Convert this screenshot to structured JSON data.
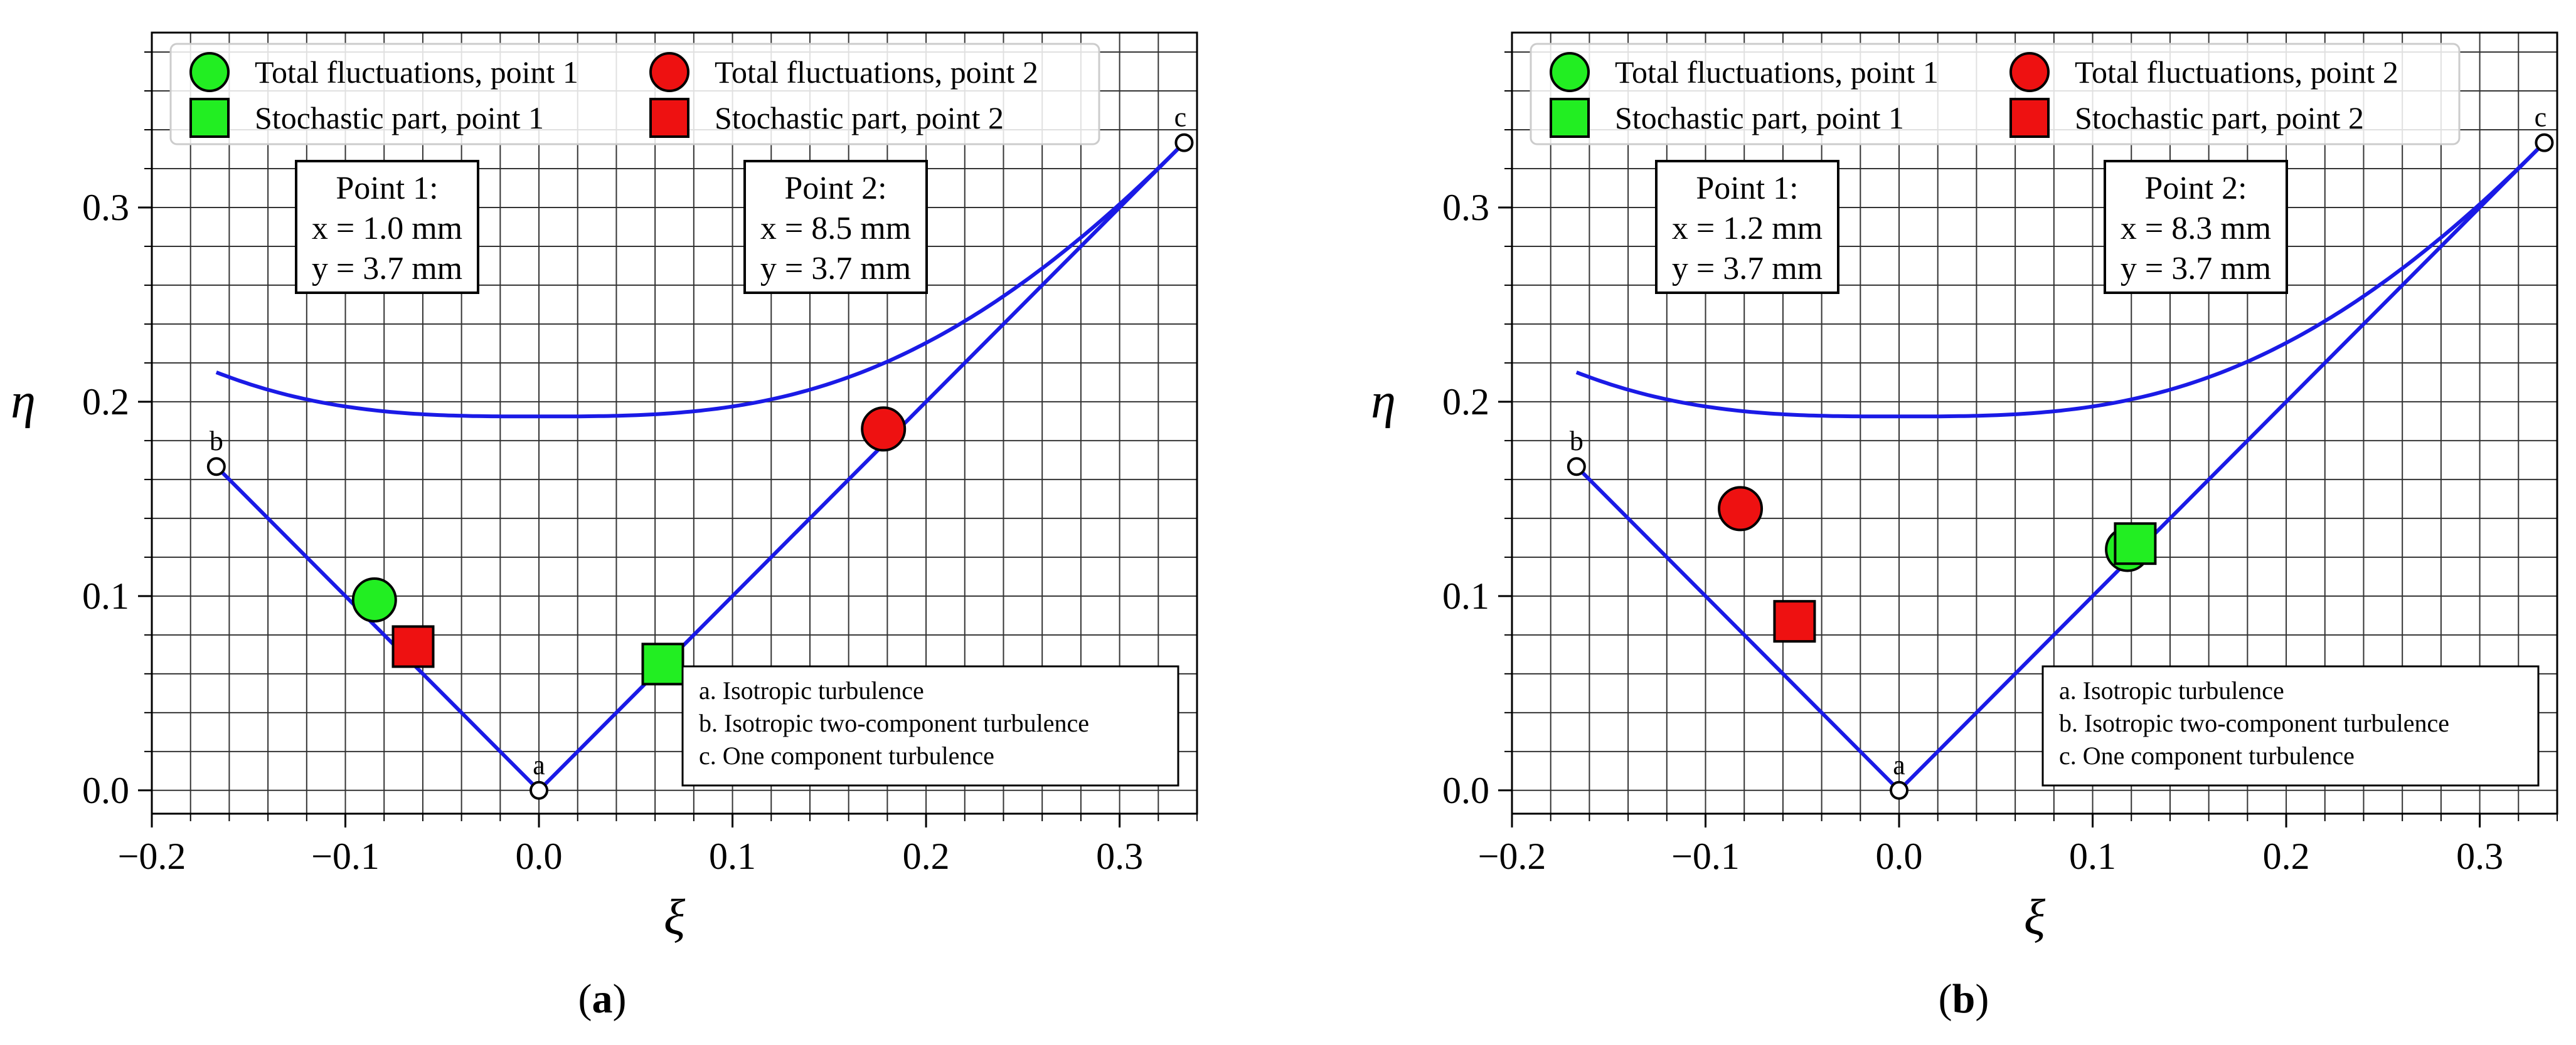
{
  "chart_data": [
    {
      "type": "scatter",
      "panel_label": "a",
      "xlabel": "ξ",
      "ylabel": "η",
      "xlim": [
        -0.2,
        0.34
      ],
      "ylim": [
        -0.012,
        0.39
      ],
      "xticks": [
        "−0.2",
        "−0.1",
        "0.0",
        "0.1",
        "0.2",
        "0.3"
      ],
      "xtick_values": [
        -0.2,
        -0.1,
        0.0,
        0.1,
        0.2,
        0.3
      ],
      "yticks": [
        "0.0",
        "0.1",
        "0.2",
        "0.3"
      ],
      "ytick_values": [
        0.0,
        0.1,
        0.2,
        0.3
      ],
      "grid": true,
      "legend_position": "top",
      "series": [
        {
          "name": "Total fluctuations, point 1",
          "marker": "circle",
          "color": "#22ee22",
          "x": [
            -0.085
          ],
          "y": [
            0.098
          ]
        },
        {
          "name": "Total fluctuations, point 2",
          "marker": "circle",
          "color": "#ee1111",
          "x": [
            0.178
          ],
          "y": [
            0.186
          ]
        },
        {
          "name": "Stochastic part, point 1",
          "marker": "square",
          "color": "#22ee22",
          "x": [
            0.064
          ],
          "y": [
            0.065
          ]
        },
        {
          "name": "Stochastic part, point 2",
          "marker": "square",
          "color": "#ee1111",
          "x": [
            -0.065
          ],
          "y": [
            0.074
          ]
        }
      ],
      "point1_box": [
        "Point 1:",
        "x = 1.0 mm",
        "y = 3.7 mm"
      ],
      "point2_box": [
        "Point 2:",
        "x = 8.5 mm",
        "y = 3.7 mm"
      ],
      "vertex_labels": [
        "a",
        "b",
        "c"
      ],
      "key": [
        "a. Isotropic turbulence",
        "b. Isotropic two-component turbulence",
        "c. One component turbulence"
      ]
    },
    {
      "type": "scatter",
      "panel_label": "b",
      "xlabel": "ξ",
      "ylabel": "η",
      "xlim": [
        -0.2,
        0.34
      ],
      "ylim": [
        -0.012,
        0.39
      ],
      "xticks": [
        "−0.2",
        "−0.1",
        "0.0",
        "0.1",
        "0.2",
        "0.3"
      ],
      "xtick_values": [
        -0.2,
        -0.1,
        0.0,
        0.1,
        0.2,
        0.3
      ],
      "yticks": [
        "0.0",
        "0.1",
        "0.2",
        "0.3"
      ],
      "ytick_values": [
        0.0,
        0.1,
        0.2,
        0.3
      ],
      "grid": true,
      "legend_position": "top",
      "series": [
        {
          "name": "Total fluctuations, point 1",
          "marker": "circle",
          "color": "#22ee22",
          "x": [
            0.118
          ],
          "y": [
            0.124
          ]
        },
        {
          "name": "Total fluctuations, point 2",
          "marker": "circle",
          "color": "#ee1111",
          "x": [
            -0.082
          ],
          "y": [
            0.145
          ]
        },
        {
          "name": "Stochastic part, point 1",
          "marker": "square",
          "color": "#22ee22",
          "x": [
            0.122
          ],
          "y": [
            0.127
          ]
        },
        {
          "name": "Stochastic part, point 2",
          "marker": "square",
          "color": "#ee1111",
          "x": [
            -0.054
          ],
          "y": [
            0.087
          ]
        }
      ],
      "point1_box": [
        "Point 1:",
        "x = 1.2 mm",
        "y = 3.7 mm"
      ],
      "point2_box": [
        "Point 2:",
        "x = 8.3 mm",
        "y = 3.7 mm"
      ],
      "vertex_labels": [
        "a",
        "b",
        "c"
      ],
      "key": [
        "a. Isotropic turbulence",
        "b. Isotropic two-component turbulence",
        "c. One component turbulence"
      ]
    }
  ],
  "colors": {
    "boundary_line": "#1a1ae6",
    "grid": "#333333",
    "green_marker": "#22ee22",
    "red_marker": "#ee1111"
  }
}
